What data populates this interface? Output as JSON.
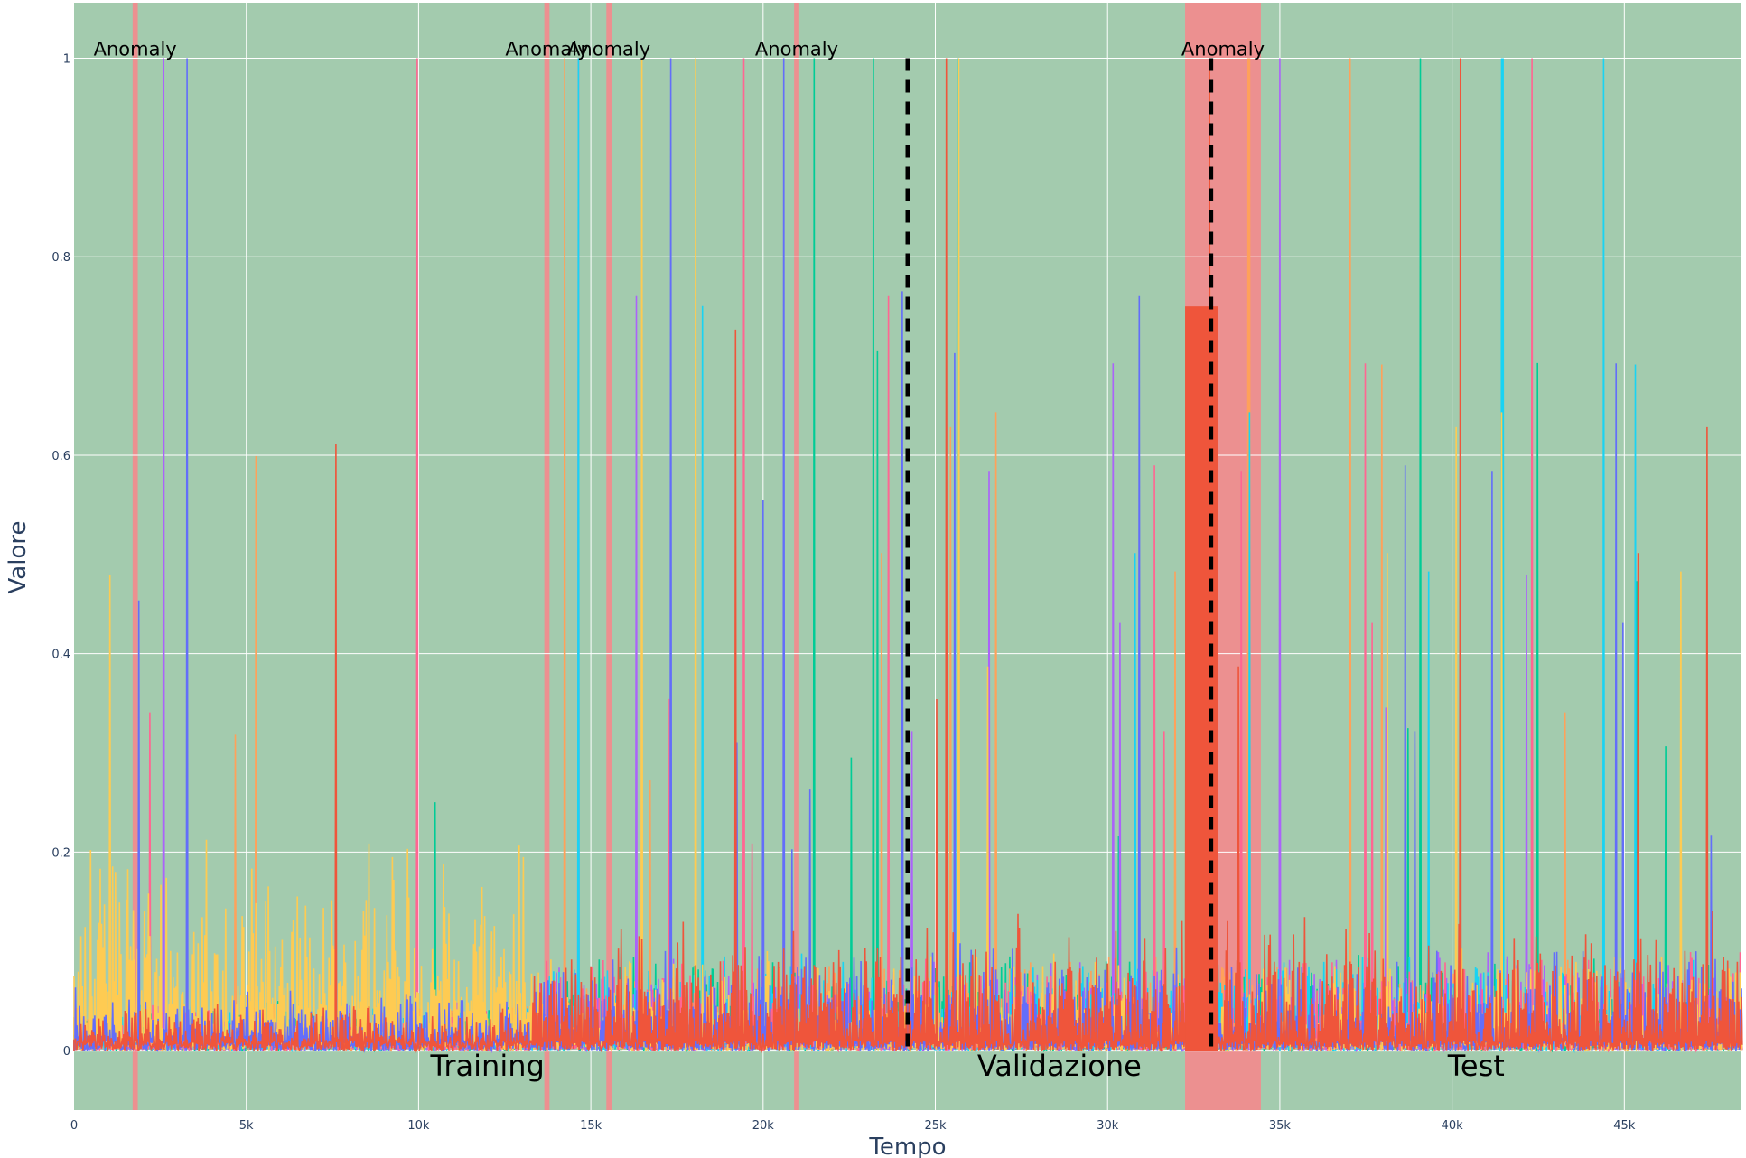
{
  "chart_data": {
    "type": "line",
    "xlabel": "Tempo",
    "ylabel": "Valore",
    "xlim": [
      0,
      48400
    ],
    "ylim": [
      -0.06,
      1.056
    ],
    "x_ticks": [
      {
        "value": 0,
        "label": "0"
      },
      {
        "value": 5000,
        "label": "5k"
      },
      {
        "value": 10000,
        "label": "10k"
      },
      {
        "value": 15000,
        "label": "15k"
      },
      {
        "value": 20000,
        "label": "20k"
      },
      {
        "value": 25000,
        "label": "25k"
      },
      {
        "value": 30000,
        "label": "30k"
      },
      {
        "value": 35000,
        "label": "35k"
      },
      {
        "value": 40000,
        "label": "40k"
      },
      {
        "value": 45000,
        "label": "45k"
      }
    ],
    "y_ticks": [
      {
        "value": 0,
        "label": "0"
      },
      {
        "value": 0.2,
        "label": "0.2"
      },
      {
        "value": 0.4,
        "label": "0.4"
      },
      {
        "value": 0.6,
        "label": "0.6"
      },
      {
        "value": 0.8,
        "label": "0.8"
      },
      {
        "value": 1,
        "label": "1"
      }
    ],
    "grid": true,
    "background_color": "#a3cbae",
    "anomaly_color": "#f08c8e",
    "split_lines": [
      24200,
      33000
    ],
    "phases": [
      {
        "label": "Training",
        "x": 12000
      },
      {
        "label": "Validazione",
        "x": 28600
      },
      {
        "label": "Test",
        "x": 40700
      }
    ],
    "anomalies": [
      {
        "x0": 1700,
        "x1": 1850,
        "label": "Anomaly"
      },
      {
        "x0": 13650,
        "x1": 13800,
        "label": "Anomaly"
      },
      {
        "x0": 15450,
        "x1": 15600,
        "label": "Anomaly"
      },
      {
        "x0": 20900,
        "x1": 21050,
        "label": "Anomaly"
      },
      {
        "x0": 32250,
        "x1": 34450,
        "label": "Anomaly"
      }
    ],
    "series": [
      {
        "color": "#636efa"
      },
      {
        "color": "#ef553b"
      },
      {
        "color": "#00cc96"
      },
      {
        "color": "#ab63fa"
      },
      {
        "color": "#ffa15a"
      },
      {
        "color": "#19d3f3"
      },
      {
        "color": "#ff6692"
      },
      {
        "color": "#fecb52"
      }
    ]
  }
}
